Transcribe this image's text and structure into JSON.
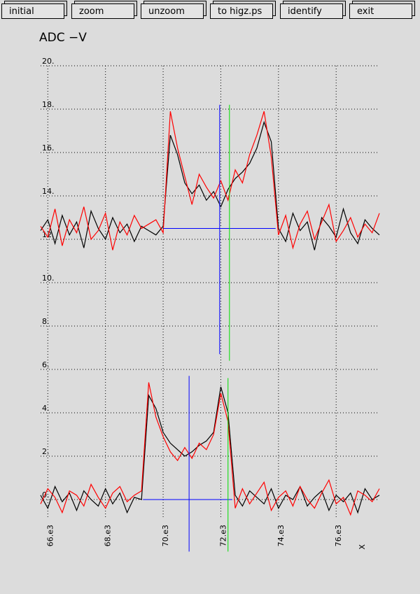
{
  "buttons": [
    "initial",
    "zoom",
    "unzoom",
    "to higz.ps",
    "identify",
    "exit"
  ],
  "chart_data": {
    "type": "line",
    "title": "ADC  −V",
    "xlabel": "X",
    "grid": true,
    "xlim": [
      65750,
      77500
    ],
    "ylim": [
      -2,
      20
    ],
    "xticks": [
      {
        "value": 66000,
        "label": "66.e3"
      },
      {
        "value": 68000,
        "label": "68.e3"
      },
      {
        "value": 70000,
        "label": "70.e3"
      },
      {
        "value": 72000,
        "label": "72.e3"
      },
      {
        "value": 74000,
        "label": "74.e3"
      },
      {
        "value": 76000,
        "label": "76.e3"
      }
    ],
    "yticks": [
      {
        "value": 0,
        "label": "0."
      },
      {
        "value": 2,
        "label": "2."
      },
      {
        "value": 4,
        "label": "4."
      },
      {
        "value": 6,
        "label": "6."
      },
      {
        "value": 8,
        "label": "8."
      },
      {
        "value": 10,
        "label": "10."
      },
      {
        "value": 12,
        "label": "12."
      },
      {
        "value": 14,
        "label": "14."
      },
      {
        "value": 16,
        "label": "16."
      },
      {
        "value": 18,
        "label": "18."
      },
      {
        "value": 20,
        "label": "20."
      }
    ],
    "x": [
      65750,
      66000,
      66250,
      66500,
      66750,
      67000,
      67250,
      67500,
      67750,
      68000,
      68250,
      68500,
      68750,
      69000,
      69250,
      69500,
      69750,
      70000,
      70250,
      70500,
      70750,
      71000,
      71250,
      71500,
      71750,
      72000,
      72250,
      72500,
      72750,
      73000,
      73250,
      73500,
      73750,
      74000,
      74250,
      74500,
      74750,
      75000,
      75250,
      75500,
      75750,
      76000,
      76250,
      76500,
      76750,
      77000,
      77250,
      77500
    ],
    "series": [
      {
        "color": "#000000",
        "values": [
          12.4,
          12.9,
          11.8,
          13.1,
          12.2,
          12.8,
          11.6,
          13.3,
          12.5,
          12.0,
          13.0,
          12.3,
          12.7,
          11.9,
          12.6,
          12.4,
          12.2,
          12.6,
          16.8,
          15.9,
          14.6,
          14.1,
          14.5,
          13.8,
          14.2,
          13.5,
          14.3,
          14.8,
          15.1,
          15.5,
          16.2,
          17.4,
          16.5,
          12.5,
          11.9,
          13.2,
          12.4,
          12.8,
          11.5,
          13.0,
          12.6,
          12.1,
          13.4,
          12.3,
          11.8,
          12.9,
          12.5,
          12.2
        ]
      },
      {
        "color": "#ff0000",
        "values": [
          12.6,
          12.1,
          13.4,
          11.7,
          12.9,
          12.3,
          13.5,
          12.0,
          12.4,
          13.2,
          11.5,
          12.8,
          12.2,
          13.1,
          12.5,
          12.7,
          12.9,
          12.3,
          17.9,
          16.2,
          14.9,
          13.6,
          15.0,
          14.4,
          13.9,
          14.7,
          13.8,
          15.2,
          14.6,
          15.9,
          16.8,
          17.9,
          15.8,
          12.2,
          13.1,
          11.6,
          12.7,
          13.3,
          12.0,
          12.8,
          13.6,
          11.9,
          12.4,
          13.0,
          12.1,
          12.7,
          12.3,
          13.2
        ]
      },
      {
        "color": "#000000",
        "values": [
          0.2,
          -0.4,
          0.6,
          -0.1,
          0.3,
          -0.5,
          0.4,
          0.0,
          -0.3,
          0.5,
          -0.2,
          0.3,
          -0.6,
          0.1,
          0.0,
          4.8,
          4.2,
          3.1,
          2.6,
          2.3,
          2.0,
          2.2,
          2.5,
          2.7,
          3.1,
          5.2,
          4.0,
          0.2,
          -0.3,
          0.4,
          0.1,
          -0.2,
          0.5,
          -0.4,
          0.2,
          0.0,
          0.6,
          -0.3,
          0.1,
          0.4,
          -0.5,
          0.2,
          -0.1,
          0.3,
          -0.6,
          0.5,
          0.0,
          0.2
        ]
      },
      {
        "color": "#ff0000",
        "values": [
          -0.2,
          0.5,
          0.1,
          -0.6,
          0.4,
          0.2,
          -0.3,
          0.7,
          0.1,
          -0.4,
          0.3,
          0.6,
          -0.1,
          0.2,
          0.4,
          5.4,
          3.8,
          2.9,
          2.2,
          1.8,
          2.4,
          1.9,
          2.6,
          2.3,
          3.0,
          4.9,
          3.6,
          -0.4,
          0.5,
          -0.2,
          0.3,
          0.8,
          -0.5,
          0.1,
          0.4,
          -0.3,
          0.6,
          0.0,
          -0.4,
          0.3,
          0.9,
          -0.2,
          0.1,
          -0.7,
          0.4,
          0.2,
          -0.1,
          0.5
        ]
      }
    ],
    "cursors": [
      {
        "color": "#0000ff",
        "x": [
          70000,
          73900
        ],
        "y": [
          12.5,
          12.5
        ]
      },
      {
        "color": "#0000ff",
        "x": [
          71960,
          71960
        ],
        "y": [
          18.2,
          6.7
        ]
      },
      {
        "color": "#00dd00",
        "x": [
          72300,
          72300
        ],
        "y": [
          18.2,
          6.4
        ]
      },
      {
        "color": "#0000ff",
        "x": [
          69300,
          72400
        ],
        "y": [
          0,
          0
        ]
      },
      {
        "color": "#0000ff",
        "x": [
          70900,
          70900
        ],
        "y": [
          5.7,
          -2.4
        ]
      },
      {
        "color": "#00dd00",
        "x": [
          72250,
          72250
        ],
        "y": [
          5.6,
          -2.4
        ]
      }
    ]
  }
}
